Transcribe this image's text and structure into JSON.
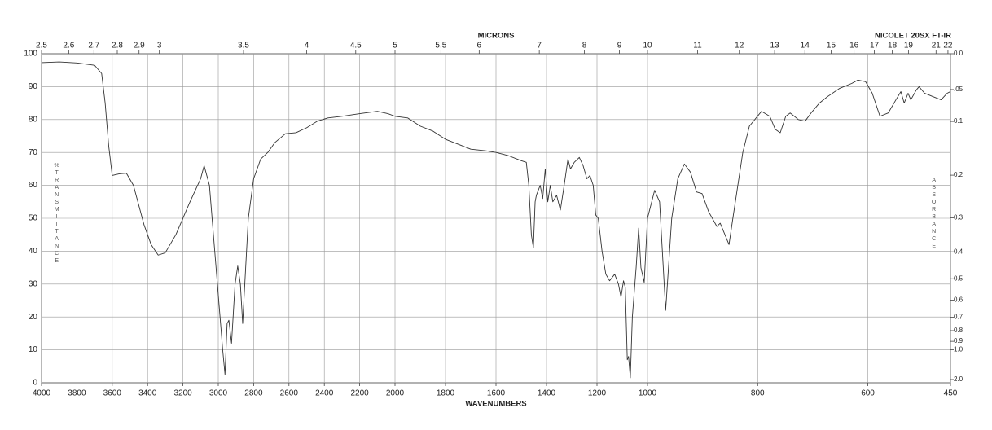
{
  "chart_data": {
    "type": "line",
    "title": "NICOLET 20SX FT-IR",
    "x_label": "WAVENUMBERS",
    "x2_label": "MICRONS",
    "y_label": "%TRANSMITTANCE",
    "y2_label": "ABSORBANCE",
    "xlim": [
      4000,
      450
    ],
    "x_scale_breaks": [
      2000,
      1000
    ],
    "xticks": [
      4000,
      3800,
      3600,
      3400,
      3200,
      3000,
      2800,
      2600,
      2400,
      2200,
      2000,
      1800,
      1600,
      1400,
      1200,
      1000,
      800,
      600,
      450
    ],
    "x2_unit": "microns",
    "x2ticks": [
      2.5,
      2.6,
      2.7,
      2.8,
      2.9,
      3,
      3.5,
      4,
      4.5,
      5,
      5.5,
      6,
      7,
      8,
      9,
      10,
      11,
      12,
      13,
      14,
      15,
      16,
      17,
      18,
      19,
      21,
      22
    ],
    "ylim": [
      0,
      100
    ],
    "yticks": [
      0,
      10,
      20,
      30,
      40,
      50,
      60,
      70,
      80,
      90,
      100
    ],
    "y2scale": "absorbance",
    "y2ticks": [
      {
        "value": 0,
        "label": "0.0"
      },
      {
        "value": 0.05,
        "label": ".05"
      },
      0.1,
      0.2,
      0.3,
      0.4,
      0.5,
      0.6,
      0.7,
      0.8,
      0.9,
      {
        "value": 1.0,
        "label": "1.0"
      },
      {
        "value": 2.0,
        "label": "2.0"
      }
    ],
    "grid": true,
    "series": [
      {
        "name": "spectrum",
        "color": "#333333",
        "x": [
          4000,
          3900,
          3800,
          3700,
          3660,
          3640,
          3620,
          3600,
          3560,
          3520,
          3480,
          3420,
          3380,
          3340,
          3300,
          3240,
          3160,
          3100,
          3080,
          3050,
          3020,
          2990,
          2975,
          2962,
          2950,
          2940,
          2925,
          2905,
          2890,
          2875,
          2862,
          2850,
          2830,
          2800,
          2760,
          2720,
          2680,
          2620,
          2560,
          2500,
          2440,
          2380,
          2300,
          2200,
          2100,
          2040,
          2000,
          1950,
          1900,
          1850,
          1800,
          1750,
          1700,
          1640,
          1600,
          1550,
          1500,
          1480,
          1470,
          1460,
          1452,
          1445,
          1440,
          1425,
          1415,
          1405,
          1395,
          1385,
          1375,
          1360,
          1345,
          1330,
          1315,
          1305,
          1290,
          1270,
          1255,
          1240,
          1228,
          1215,
          1205,
          1195,
          1180,
          1165,
          1150,
          1130,
          1115,
          1105,
          1095,
          1088,
          1080,
          1075,
          1068,
          1060,
          1045,
          1035,
          1026,
          1013,
          1000,
          987,
          978,
          967,
          956,
          945,
          933,
          922,
          911,
          901,
          889,
          874,
          868,
          852,
          845,
          827,
          815,
          793,
          778,
          768,
          759,
          749,
          741,
          726,
          714,
          703,
          688,
          673,
          651,
          629,
          618,
          604,
          592,
          578,
          563,
          549,
          540,
          534,
          527,
          522,
          512,
          507,
          497,
          482,
          467,
          456,
          450
        ],
        "values": [
          97.3,
          97.5,
          97.2,
          96.5,
          94,
          85,
          72,
          63,
          63.5,
          63.7,
          60,
          48,
          42,
          38.8,
          39.5,
          45,
          55,
          62,
          66,
          60,
          40,
          20,
          10,
          2.5,
          18,
          19,
          12,
          30,
          35.5,
          30,
          18,
          30,
          50,
          62,
          68,
          70,
          73,
          75.7,
          76,
          77.5,
          79.5,
          80.5,
          81,
          81.8,
          82.5,
          81.8,
          81,
          80.5,
          78,
          76.5,
          74,
          72.5,
          71,
          70.5,
          70,
          69,
          67.5,
          67,
          60,
          45,
          41,
          55,
          57,
          60,
          56,
          65,
          55,
          60,
          55,
          57,
          52.5,
          60,
          68,
          65,
          67,
          68.5,
          66,
          62,
          63,
          60,
          51,
          50,
          40,
          33,
          31,
          33,
          30,
          26,
          31,
          29,
          7,
          8,
          1.5,
          20,
          35,
          47,
          35,
          30.5,
          50,
          58.5,
          55,
          22,
          50,
          62,
          66.5,
          64,
          58,
          57.5,
          52,
          47.5,
          48.5,
          42,
          50,
          70,
          78,
          82.5,
          81,
          77,
          76,
          81,
          82,
          80,
          79.5,
          82,
          85,
          87,
          89.5,
          91,
          92,
          91.5,
          88,
          81,
          82,
          86,
          88.5,
          85,
          88,
          86,
          89,
          90,
          88,
          87,
          86,
          88,
          88.5
        ]
      }
    ]
  }
}
